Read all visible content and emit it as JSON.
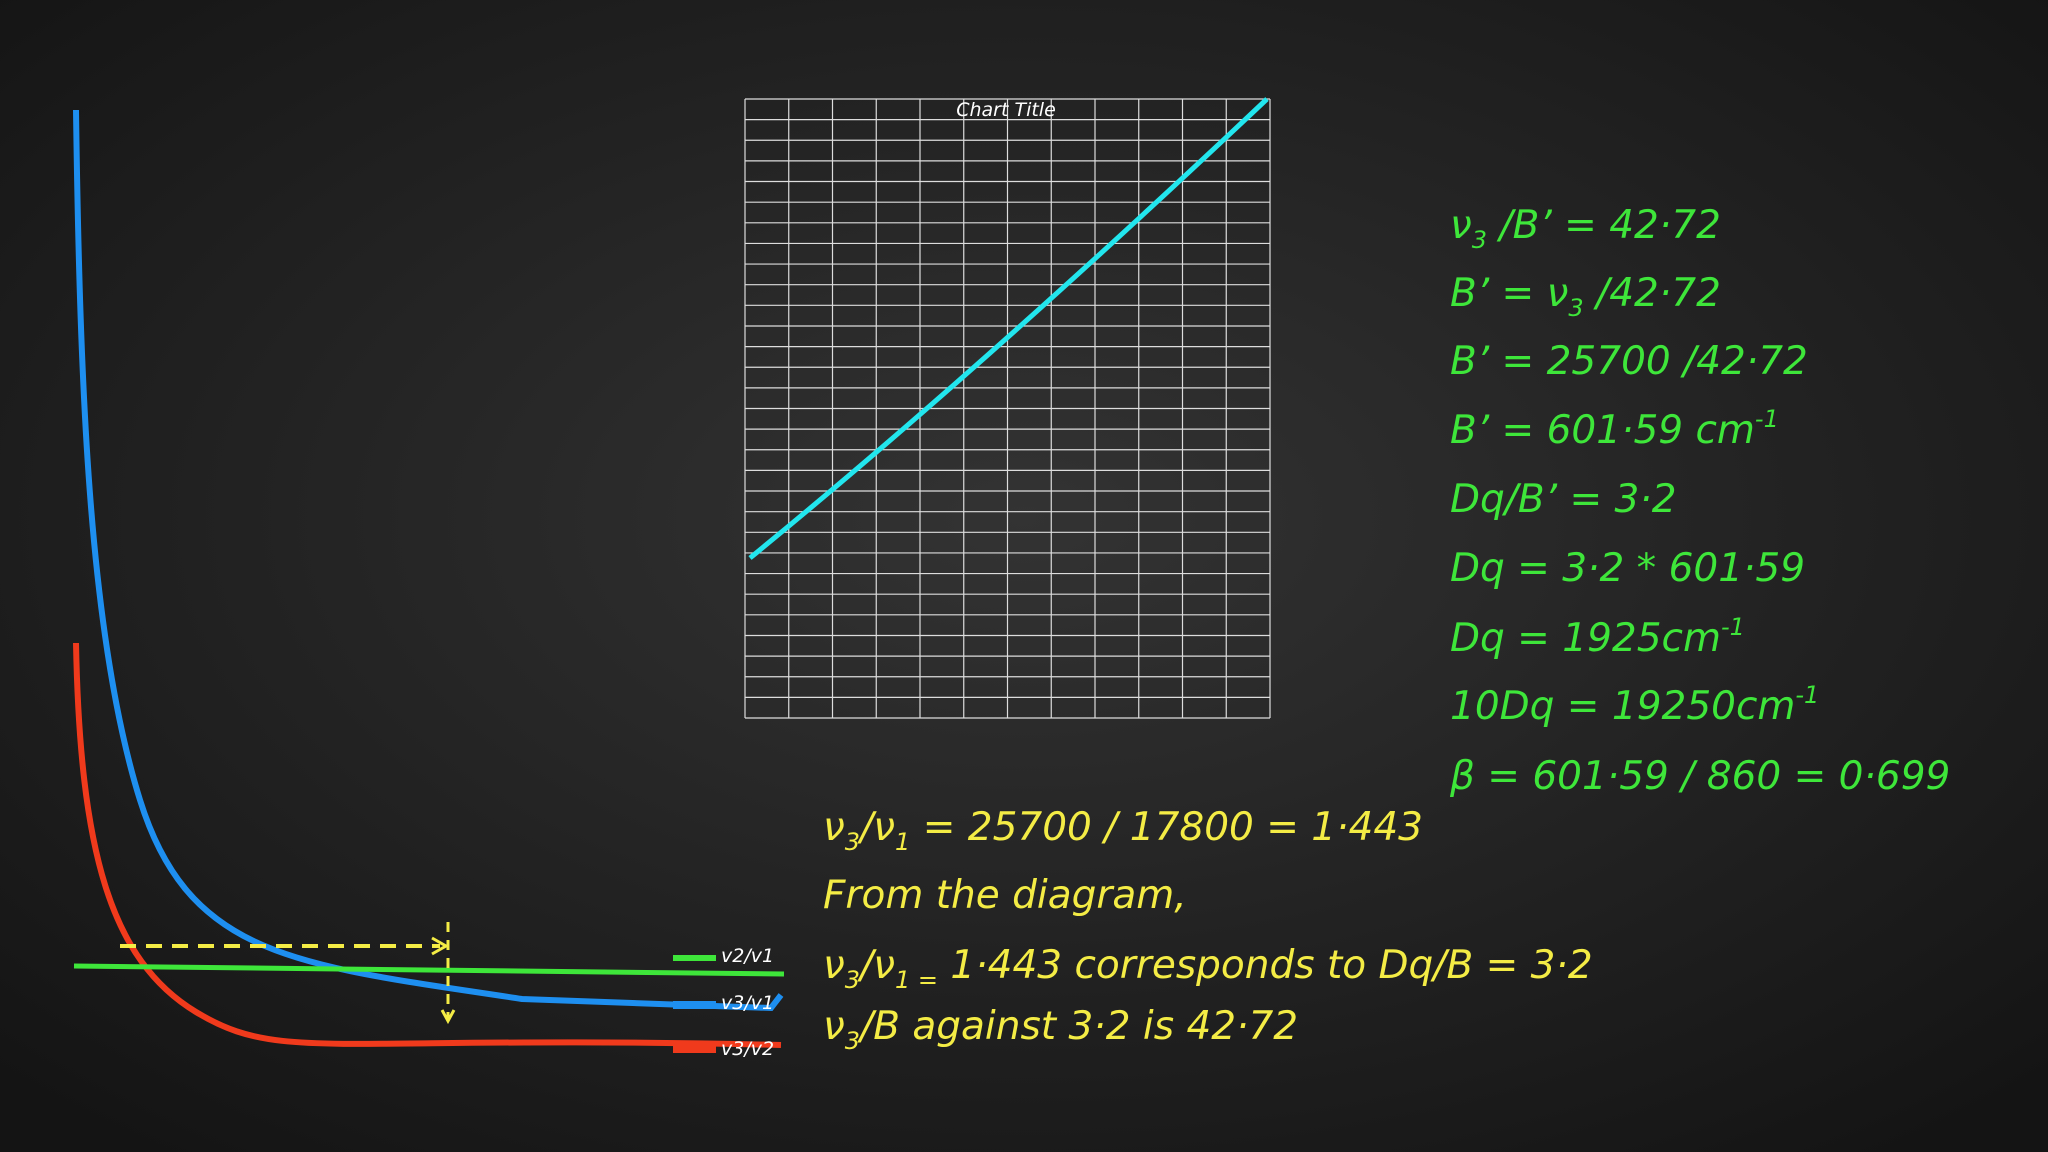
{
  "diagram": {
    "chart_title": "Chart Title",
    "legend": [
      "v2/v1",
      "v3/v1",
      "v3/v2"
    ]
  },
  "green_lines": [
    [
      "ν",
      {
        "text": "3",
        "script": "sub"
      },
      " /B’ = 42·72"
    ],
    [
      "B’ = ν",
      {
        "text": "3",
        "script": "sub"
      },
      " /42·72"
    ],
    [
      "B’ = 25700 /42·72"
    ],
    [
      "B’ = 601·59 cm",
      {
        "text": "-1",
        "script": "sup"
      }
    ],
    [
      "Dq/B’ = 3·2"
    ],
    [
      "Dq = 3·2 * 601·59"
    ],
    [
      "Dq =  1925cm",
      {
        "text": "-1",
        "script": "sup"
      }
    ],
    [
      "10Dq = 19250cm",
      {
        "text": "-1",
        "script": "sup"
      }
    ],
    [
      "β = 601·59 / 860 = 0·699"
    ]
  ],
  "yellow_lines": [
    [
      "ν",
      {
        "text": "3",
        "script": "sub"
      },
      "/ν",
      {
        "text": "1",
        "script": "sub"
      },
      " = 25700 / 17800 = 1·443"
    ],
    [
      "From the diagram,"
    ],
    [
      "ν",
      {
        "text": "3",
        "script": "sub"
      },
      "/ν",
      {
        "text": "1 =",
        "script": "sub"
      },
      " 1·443 corresponds to Dq/B = 3·2"
    ],
    [
      " ν",
      {
        "text": "3",
        "script": "sub"
      },
      "/B against 3·2 is 42·72"
    ]
  ]
}
